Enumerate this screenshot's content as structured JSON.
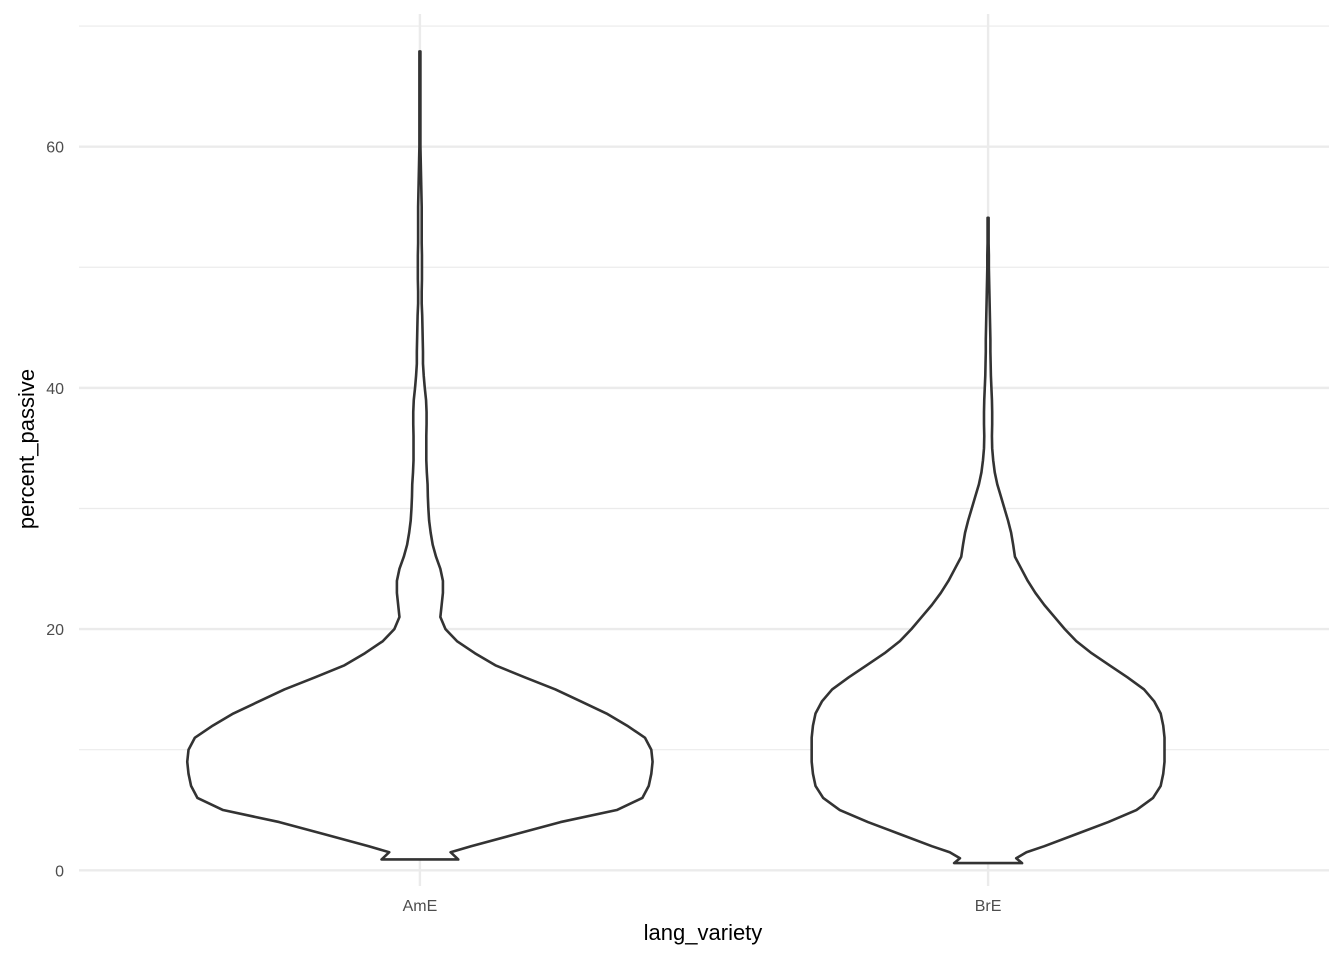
{
  "chart_data": {
    "type": "violin",
    "xlabel": "lang_variety",
    "ylabel": "percent_passive",
    "categories": [
      "AmE",
      "BrE"
    ],
    "ylim": [
      -1.3,
      71
    ],
    "yticks_major": [
      0,
      20,
      40,
      60
    ],
    "yticks_minor": [
      10,
      30,
      50,
      70
    ],
    "grid": true,
    "violins": [
      {
        "category": "AmE",
        "ymin": 0.9,
        "ymax": 67.9,
        "profile": [
          [
            0.9,
            0.15
          ],
          [
            1.5,
            0.12
          ],
          [
            2.0,
            0.2
          ],
          [
            3.0,
            0.375
          ],
          [
            4.0,
            0.55
          ],
          [
            5.0,
            0.77
          ],
          [
            6.0,
            0.87
          ],
          [
            7.0,
            0.895
          ],
          [
            8.0,
            0.905
          ],
          [
            9.0,
            0.91
          ],
          [
            10.0,
            0.905
          ],
          [
            11.0,
            0.88
          ],
          [
            12.0,
            0.81
          ],
          [
            13.0,
            0.73
          ],
          [
            14.0,
            0.63
          ],
          [
            15.0,
            0.53
          ],
          [
            16.0,
            0.41
          ],
          [
            17.0,
            0.295
          ],
          [
            18.0,
            0.215
          ],
          [
            19.0,
            0.145
          ],
          [
            20.0,
            0.1
          ],
          [
            21.0,
            0.08
          ],
          [
            22.0,
            0.085
          ],
          [
            23.0,
            0.09
          ],
          [
            24.0,
            0.09
          ],
          [
            25.0,
            0.08
          ],
          [
            26.0,
            0.063
          ],
          [
            27.0,
            0.05
          ],
          [
            28.0,
            0.042
          ],
          [
            29.0,
            0.036
          ],
          [
            30.0,
            0.033
          ],
          [
            31.0,
            0.031
          ],
          [
            32.0,
            0.03
          ],
          [
            33.0,
            0.027
          ],
          [
            34.0,
            0.025
          ],
          [
            35.0,
            0.025
          ],
          [
            36.0,
            0.025
          ],
          [
            37.0,
            0.026
          ],
          [
            38.0,
            0.026
          ],
          [
            39.0,
            0.024
          ],
          [
            40.0,
            0.019
          ],
          [
            41.0,
            0.015
          ],
          [
            42.0,
            0.012
          ],
          [
            43.0,
            0.012
          ],
          [
            44.0,
            0.011
          ],
          [
            45.0,
            0.01
          ],
          [
            46.0,
            0.009
          ],
          [
            47.0,
            0.007
          ],
          [
            48.0,
            0.007
          ],
          [
            49.0,
            0.008
          ],
          [
            50.0,
            0.008
          ],
          [
            51.0,
            0.008
          ],
          [
            52.0,
            0.007
          ],
          [
            53.0,
            0.007
          ],
          [
            54.0,
            0.007
          ],
          [
            55.0,
            0.007
          ],
          [
            56.0,
            0.006
          ],
          [
            57.0,
            0.005
          ],
          [
            58.0,
            0.004
          ],
          [
            59.0,
            0.003
          ],
          [
            60.0,
            0.002
          ],
          [
            62.0,
            0.002
          ],
          [
            64.0,
            0.002
          ],
          [
            66.0,
            0.002
          ],
          [
            67.9,
            0.002
          ]
        ]
      },
      {
        "category": "BrE",
        "ymin": 0.6,
        "ymax": 54.1,
        "profile": [
          [
            0.6,
            0.133
          ],
          [
            1.0,
            0.11
          ],
          [
            1.5,
            0.15
          ],
          [
            2.0,
            0.22
          ],
          [
            3.0,
            0.345
          ],
          [
            4.0,
            0.47
          ],
          [
            5.0,
            0.58
          ],
          [
            6.0,
            0.645
          ],
          [
            7.0,
            0.675
          ],
          [
            8.0,
            0.685
          ],
          [
            9.0,
            0.69
          ],
          [
            10.0,
            0.69
          ],
          [
            11.0,
            0.69
          ],
          [
            12.0,
            0.685
          ],
          [
            13.0,
            0.675
          ],
          [
            14.0,
            0.65
          ],
          [
            15.0,
            0.61
          ],
          [
            16.0,
            0.545
          ],
          [
            17.0,
            0.475
          ],
          [
            18.0,
            0.405
          ],
          [
            19.0,
            0.345
          ],
          [
            20.0,
            0.3
          ],
          [
            21.0,
            0.26
          ],
          [
            22.0,
            0.22
          ],
          [
            23.0,
            0.185
          ],
          [
            24.0,
            0.155
          ],
          [
            25.0,
            0.13
          ],
          [
            26.0,
            0.105
          ],
          [
            27.0,
            0.098
          ],
          [
            28.0,
            0.09
          ],
          [
            29.0,
            0.078
          ],
          [
            30.0,
            0.064
          ],
          [
            31.0,
            0.05
          ],
          [
            32.0,
            0.036
          ],
          [
            33.0,
            0.026
          ],
          [
            34.0,
            0.02
          ],
          [
            35.0,
            0.016
          ],
          [
            36.0,
            0.015
          ],
          [
            37.0,
            0.016
          ],
          [
            38.0,
            0.016
          ],
          [
            39.0,
            0.015
          ],
          [
            40.0,
            0.013
          ],
          [
            41.0,
            0.011
          ],
          [
            42.0,
            0.01
          ],
          [
            43.0,
            0.009
          ],
          [
            44.0,
            0.009
          ],
          [
            45.0,
            0.008
          ],
          [
            46.0,
            0.007
          ],
          [
            47.0,
            0.006
          ],
          [
            48.0,
            0.005
          ],
          [
            49.0,
            0.004
          ],
          [
            50.0,
            0.003
          ],
          [
            51.0,
            0.003
          ],
          [
            52.0,
            0.002
          ],
          [
            53.0,
            0.002
          ],
          [
            54.1,
            0.002
          ]
        ]
      }
    ],
    "colors": {
      "outline": "#333333",
      "fill": "#ffffff",
      "grid": "#ebebeb",
      "tick_text": "#4d4d4d",
      "axis_title": "#000000"
    }
  }
}
